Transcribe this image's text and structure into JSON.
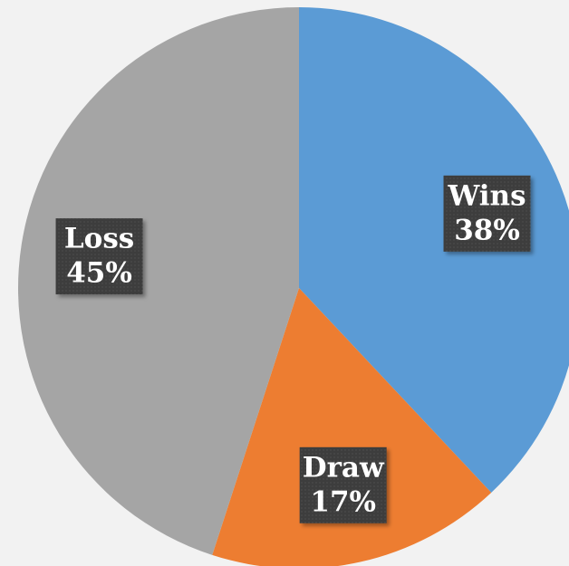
{
  "chart_data": {
    "type": "pie",
    "categories": [
      "Wins",
      "Draw",
      "Loss"
    ],
    "values": [
      38,
      17,
      45
    ],
    "value_labels": [
      "38%",
      "17%",
      "45%"
    ],
    "colors": [
      "#5b9bd5",
      "#ed7d31",
      "#a5a5a5"
    ]
  }
}
